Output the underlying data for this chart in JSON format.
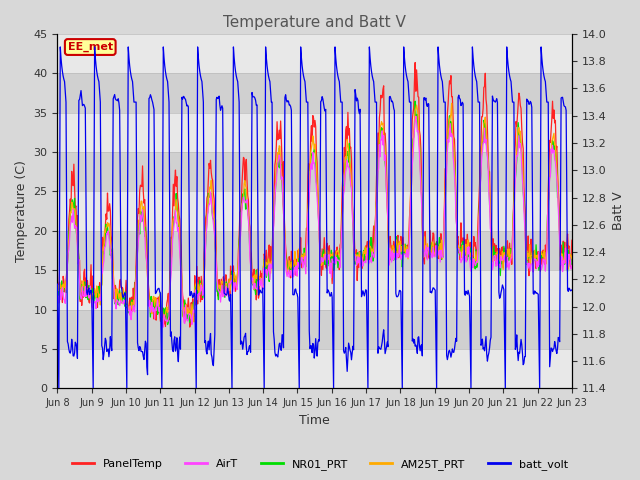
{
  "title": "Temperature and Batt V",
  "xlabel": "Time",
  "ylabel_left": "Temperature (C)",
  "ylabel_right": "Batt V",
  "ylim_left": [
    0,
    45
  ],
  "ylim_right": [
    11.4,
    14.0
  ],
  "yticks_left": [
    0,
    5,
    10,
    15,
    20,
    25,
    30,
    35,
    40,
    45
  ],
  "yticks_right": [
    11.4,
    11.6,
    11.8,
    12.0,
    12.2,
    12.4,
    12.6,
    12.8,
    13.0,
    13.2,
    13.4,
    13.6,
    13.8,
    14.0
  ],
  "xtick_labels": [
    "Jun 8",
    "Jun 9",
    "Jun 10",
    "Jun 11",
    "Jun 12",
    "Jun 13",
    "Jun 14",
    "Jun 15",
    "Jun 16",
    "Jun 17",
    "Jun 18",
    "Jun 19",
    "Jun 20",
    "Jun 21",
    "Jun 22",
    "Jun 23"
  ],
  "annotation_text": "EE_met",
  "annotation_color": "#cc0000",
  "annotation_bg": "#ffff99",
  "series": {
    "PanelTemp": {
      "color": "#ff2222",
      "lw": 0.9
    },
    "AirT": {
      "color": "#ff44ff",
      "lw": 0.9
    },
    "NR01_PRT": {
      "color": "#00dd00",
      "lw": 0.9
    },
    "AM25T_PRT": {
      "color": "#ffaa00",
      "lw": 0.9
    },
    "batt_volt": {
      "color": "#0000ee",
      "lw": 0.9
    }
  },
  "bg_color": "#d8d8d8",
  "plot_bg_light": "#e8e8e8",
  "plot_bg_dark": "#d0d0d0",
  "grid_color": "#bbbbbb",
  "title_color": "#555555"
}
